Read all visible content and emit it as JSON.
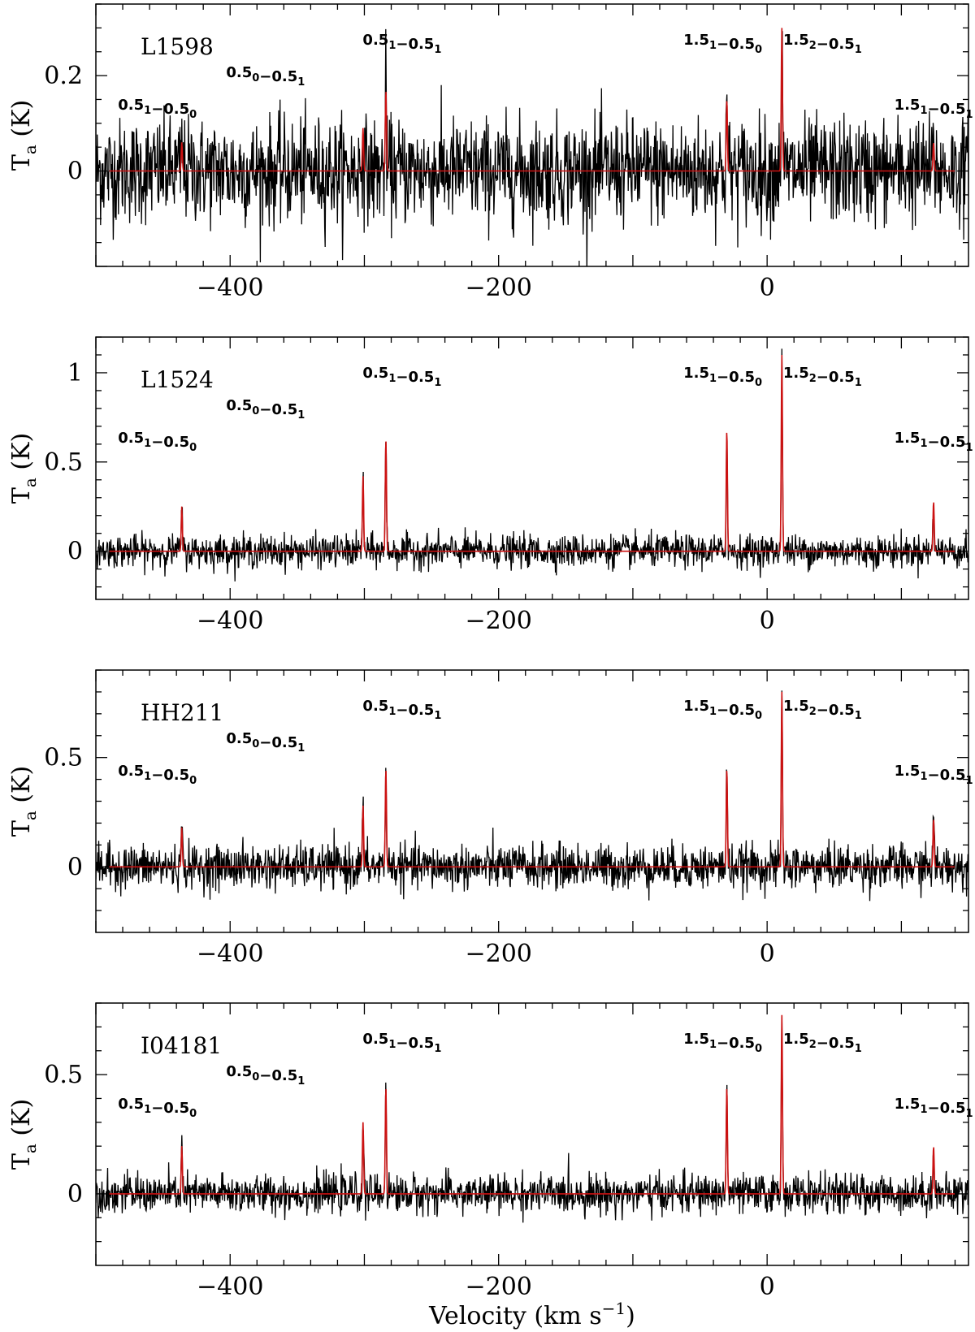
{
  "colors": {
    "spectrum": "#000000",
    "fit": "#cc1111",
    "frame": "#000000"
  },
  "chart_data": [
    {
      "type": "line",
      "source": "L1598",
      "ylabel": "T_a (K)",
      "xlim": [
        -500,
        150
      ],
      "ylim": [
        -0.2,
        0.35
      ],
      "yticks": [
        0,
        0.2
      ],
      "ytick_labels": [
        "0",
        "0.2"
      ],
      "xticks": [
        -400,
        -200,
        0
      ],
      "xtick_labels": [
        "−400",
        "−200",
        "0"
      ],
      "rms": 0.055,
      "lines": [
        {
          "label": "0.5_1−0.5_0",
          "v": -436,
          "peak": 0.06
        },
        {
          "label": "0.5_0−0.5_1",
          "v": -301,
          "peak": 0.09
        },
        {
          "label": "0.5_1−0.5_1",
          "v": -284,
          "peak": 0.17
        },
        {
          "label": "1.5_1−0.5_0",
          "v": -30,
          "peak": 0.15
        },
        {
          "label": "1.5_2−0.5_1",
          "v": 11,
          "peak": 0.3
        },
        {
          "label": "1.5_1−0.5_1",
          "v": 124,
          "peak": 0.06
        }
      ]
    },
    {
      "type": "line",
      "source": "L1524",
      "ylabel": "T_a (K)",
      "xlim": [
        -500,
        150
      ],
      "ylim": [
        -0.27,
        1.2
      ],
      "yticks": [
        0,
        0.5,
        1
      ],
      "ytick_labels": [
        "0",
        "0.5",
        "1"
      ],
      "xticks": [
        -400,
        -200,
        0
      ],
      "xtick_labels": [
        "−400",
        "−200",
        "0"
      ],
      "rms": 0.045,
      "lines": [
        {
          "label": "0.5_1−0.5_0",
          "v": -436,
          "peak": 0.25
        },
        {
          "label": "0.5_0−0.5_1",
          "v": -301,
          "peak": 0.42
        },
        {
          "label": "0.5_1−0.5_1",
          "v": -284,
          "peak": 0.63
        },
        {
          "label": "1.5_1−0.5_0",
          "v": -30,
          "peak": 0.68
        },
        {
          "label": "1.5_2−0.5_1",
          "v": 11,
          "peak": 1.1
        },
        {
          "label": "1.5_1−0.5_1",
          "v": 124,
          "peak": 0.28
        }
      ]
    },
    {
      "type": "line",
      "source": "HH211",
      "ylabel": "T_a (K)",
      "xlim": [
        -500,
        150
      ],
      "ylim": [
        -0.3,
        0.9
      ],
      "yticks": [
        0,
        0.5
      ],
      "ytick_labels": [
        "0",
        "0.5"
      ],
      "xticks": [
        -400,
        -200,
        0
      ],
      "xtick_labels": [
        "−400",
        "−200",
        "0"
      ],
      "rms": 0.05,
      "lines": [
        {
          "label": "0.5_1−0.5_0",
          "v": -436,
          "peak": 0.18
        },
        {
          "label": "0.5_0−0.5_1",
          "v": -301,
          "peak": 0.28
        },
        {
          "label": "0.5_1−0.5_1",
          "v": -284,
          "peak": 0.45
        },
        {
          "label": "1.5_1−0.5_0",
          "v": -30,
          "peak": 0.45
        },
        {
          "label": "1.5_2−0.5_1",
          "v": 11,
          "peak": 0.8
        },
        {
          "label": "1.5_1−0.5_1",
          "v": 124,
          "peak": 0.22
        }
      ]
    },
    {
      "type": "line",
      "source": "I04181",
      "ylabel": "T_a (K)",
      "xlim": [
        -500,
        150
      ],
      "ylim": [
        -0.3,
        0.8
      ],
      "yticks": [
        0,
        0.5
      ],
      "ytick_labels": [
        "0",
        "0.5"
      ],
      "xticks": [
        -400,
        -200,
        0
      ],
      "xtick_labels": [
        "−400",
        "−200",
        "0"
      ],
      "xlabel": "Velocity (km s−1)",
      "rms": 0.04,
      "lines": [
        {
          "label": "0.5_1−0.5_0",
          "v": -436,
          "peak": 0.2
        },
        {
          "label": "0.5_0−0.5_1",
          "v": -301,
          "peak": 0.3
        },
        {
          "label": "0.5_1−0.5_1",
          "v": -284,
          "peak": 0.45
        },
        {
          "label": "1.5_1−0.5_0",
          "v": -30,
          "peak": 0.45
        },
        {
          "label": "1.5_2−0.5_1",
          "v": 11,
          "peak": 0.75
        },
        {
          "label": "1.5_1−0.5_1",
          "v": 124,
          "peak": 0.2
        }
      ]
    }
  ]
}
